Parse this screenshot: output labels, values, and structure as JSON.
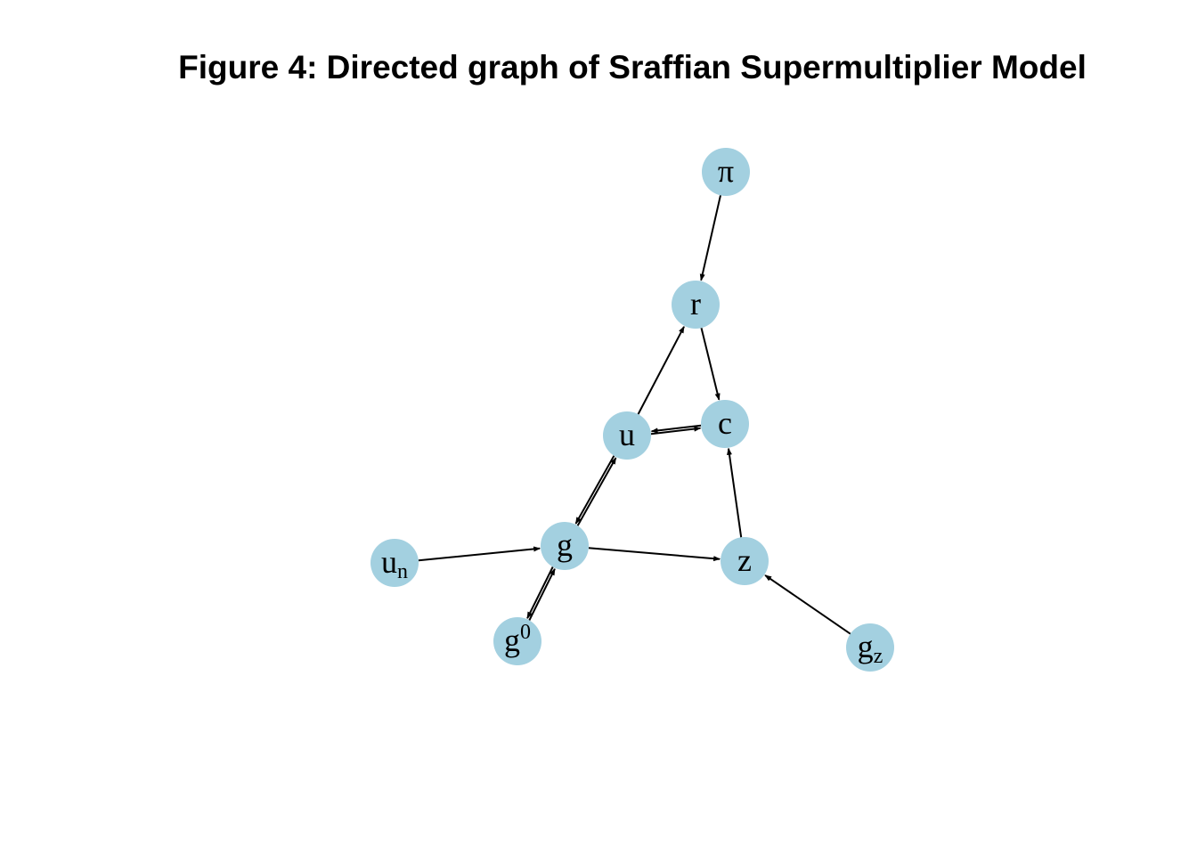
{
  "figure": {
    "title": "Figure 4: Directed graph of Sraffian Supermultiplier Model",
    "node_color": "#a3d0e0",
    "edge_color": "#000000"
  },
  "nodes": [
    {
      "id": "pi",
      "label": "π",
      "sub": "",
      "sup": ""
    },
    {
      "id": "r",
      "label": "r",
      "sub": "",
      "sup": ""
    },
    {
      "id": "u",
      "label": "u",
      "sub": "",
      "sup": ""
    },
    {
      "id": "c",
      "label": "c",
      "sub": "",
      "sup": ""
    },
    {
      "id": "g",
      "label": "g",
      "sub": "",
      "sup": ""
    },
    {
      "id": "un",
      "label": "u",
      "sub": "n",
      "sup": ""
    },
    {
      "id": "z",
      "label": "z",
      "sub": "",
      "sup": ""
    },
    {
      "id": "g0",
      "label": "g",
      "sub": "",
      "sup": "0"
    },
    {
      "id": "gz",
      "label": "g",
      "sub": "z",
      "sup": ""
    }
  ],
  "edges": [
    {
      "from": "pi",
      "to": "r"
    },
    {
      "from": "r",
      "to": "c"
    },
    {
      "from": "u",
      "to": "r"
    },
    {
      "from": "u",
      "to": "c"
    },
    {
      "from": "c",
      "to": "u"
    },
    {
      "from": "g",
      "to": "u"
    },
    {
      "from": "u",
      "to": "g"
    },
    {
      "from": "z",
      "to": "c"
    },
    {
      "from": "un",
      "to": "g"
    },
    {
      "from": "g",
      "to": "z"
    },
    {
      "from": "g",
      "to": "g0"
    },
    {
      "from": "g0",
      "to": "g"
    },
    {
      "from": "gz",
      "to": "z"
    }
  ]
}
